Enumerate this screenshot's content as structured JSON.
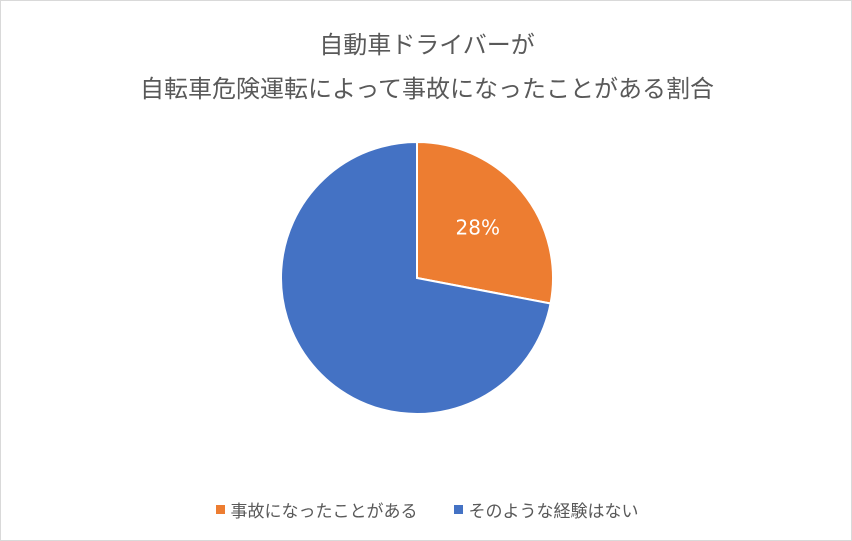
{
  "chart_data": {
    "type": "pie",
    "title_lines": [
      "自動車ドライバーが",
      "自転車危険運転によって事故になったことがある割合"
    ],
    "categories": [
      "事故になったことがある",
      "そのような経験はない"
    ],
    "values": [
      28,
      72
    ],
    "colors": [
      "#ED7D31",
      "#4472C4"
    ],
    "data_labels": [
      "28%",
      ""
    ],
    "legend_position": "bottom"
  }
}
